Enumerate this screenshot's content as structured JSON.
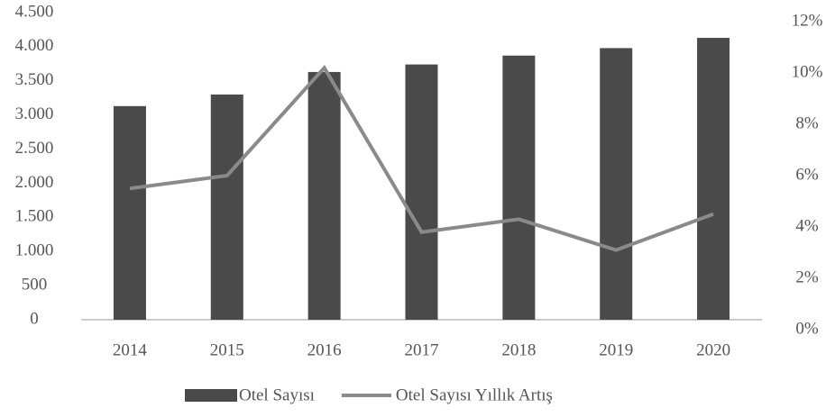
{
  "chart_data": {
    "type": "bar_line",
    "categories": [
      "2014",
      "2015",
      "2016",
      "2017",
      "2018",
      "2019",
      "2020"
    ],
    "series": [
      {
        "name": "Otel Sayısı",
        "color": "#4a4a4a",
        "type": "bar",
        "values": [
          3130,
          3300,
          3630,
          3740,
          3870,
          3980,
          4130
        ]
      },
      {
        "name": "Otel Sayısı Yıllık Artış",
        "color": "#8a8a8a",
        "type": "line",
        "axis": "y2",
        "values": [
          5.5,
          6.0,
          10.2,
          3.8,
          4.3,
          3.1,
          4.5
        ]
      }
    ],
    "ylim": [
      0,
      4500
    ],
    "yticks": [
      0,
      500,
      {
        "value": 1000,
        "label": "1.000"
      },
      {
        "value": 1500,
        "label": "1.500"
      },
      {
        "value": 2000,
        "label": "2.000"
      },
      {
        "value": 2500,
        "label": "2.500"
      },
      {
        "value": 3000,
        "label": "3.000"
      },
      {
        "value": 3500,
        "label": "3.500"
      },
      {
        "value": 4000,
        "label": "4.000"
      },
      {
        "value": 4500,
        "label": "4.500"
      }
    ],
    "y2lim": [
      0,
      12
    ],
    "y2ticks": [
      {
        "value": 0,
        "label": "0%"
      },
      {
        "value": 2,
        "label": "2%"
      },
      {
        "value": 4,
        "label": "4%"
      },
      {
        "value": 6,
        "label": "6%"
      },
      {
        "value": 8,
        "label": "8%"
      },
      {
        "value": 10,
        "label": "10%"
      },
      {
        "value": 12,
        "label": "12%"
      }
    ],
    "grid": false
  }
}
